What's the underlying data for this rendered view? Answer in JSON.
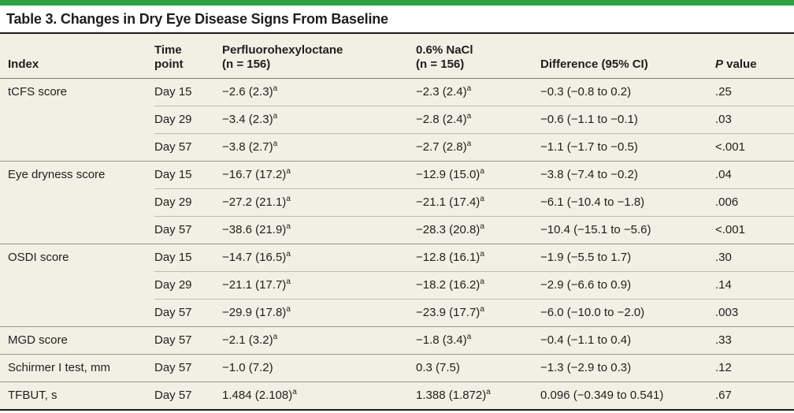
{
  "colors": {
    "accent_green": "#2f9e44",
    "table_bg": "#f2f0e5",
    "border_dark": "#1b1b1b",
    "border_header": "#7f7d74",
    "border_group": "#98968c",
    "border_row": "#bdbbae",
    "text": "#1e1e1e"
  },
  "table": {
    "title": "Table 3. Changes in Dry Eye Disease Signs From Baseline",
    "columns": [
      {
        "label": "Index"
      },
      {
        "line1": "Time",
        "line2": "point"
      },
      {
        "line1": "Perfluorohexyloctane",
        "line2": "(n = 156)"
      },
      {
        "line1": "0.6% NaCl",
        "line2": "(n = 156)"
      },
      {
        "label": "Difference (95% CI)"
      },
      {
        "p_italic": "P",
        "p_rest": " value"
      }
    ],
    "footnote_marker": "a",
    "groups": [
      {
        "index": "tCFS score",
        "rows": [
          {
            "time": "Day 15",
            "pfho": {
              "t": "−2.6 (2.3)",
              "sup": "a"
            },
            "nacl": {
              "t": "−2.3 (2.4)",
              "sup": "a"
            },
            "diff": "−0.3 (−0.8 to 0.2)",
            "p": ".25"
          },
          {
            "time": "Day 29",
            "pfho": {
              "t": "−3.4 (2.3)",
              "sup": "a"
            },
            "nacl": {
              "t": "−2.8 (2.4)",
              "sup": "a"
            },
            "diff": "−0.6 (−1.1 to −0.1)",
            "p": ".03"
          },
          {
            "time": "Day 57",
            "pfho": {
              "t": "−3.8 (2.7)",
              "sup": "a"
            },
            "nacl": {
              "t": "−2.7 (2.8)",
              "sup": "a"
            },
            "diff": "−1.1 (−1.7 to −0.5)",
            "p": "<.001"
          }
        ]
      },
      {
        "index": "Eye dryness score",
        "rows": [
          {
            "time": "Day 15",
            "pfho": {
              "t": "−16.7 (17.2)",
              "sup": "a"
            },
            "nacl": {
              "t": "−12.9 (15.0)",
              "sup": "a"
            },
            "diff": "−3.8 (−7.4 to −0.2)",
            "p": ".04"
          },
          {
            "time": "Day 29",
            "pfho": {
              "t": "−27.2 (21.1)",
              "sup": "a"
            },
            "nacl": {
              "t": "−21.1 (17.4)",
              "sup": "a"
            },
            "diff": "−6.1 (−10.4 to −1.8)",
            "p": ".006"
          },
          {
            "time": "Day 57",
            "pfho": {
              "t": "−38.6 (21.9)",
              "sup": "a"
            },
            "nacl": {
              "t": "−28.3 (20.8)",
              "sup": "a"
            },
            "diff": "−10.4 (−15.1 to −5.6)",
            "p": "<.001"
          }
        ]
      },
      {
        "index": "OSDI score",
        "rows": [
          {
            "time": "Day 15",
            "pfho": {
              "t": "−14.7 (16.5)",
              "sup": "a"
            },
            "nacl": {
              "t": "−12.8 (16.1)",
              "sup": "a"
            },
            "diff": "−1.9 (−5.5 to 1.7)",
            "p": ".30"
          },
          {
            "time": "Day 29",
            "pfho": {
              "t": "−21.1 (17.7)",
              "sup": "a"
            },
            "nacl": {
              "t": "−18.2 (16.2)",
              "sup": "a"
            },
            "diff": "−2.9 (−6.6 to 0.9)",
            "p": ".14"
          },
          {
            "time": "Day 57",
            "pfho": {
              "t": "−29.9 (17.8)",
              "sup": "a"
            },
            "nacl": {
              "t": "−23.9 (17.7)",
              "sup": "a"
            },
            "diff": "−6.0 (−10.0 to −2.0)",
            "p": ".003"
          }
        ]
      },
      {
        "index": "MGD score",
        "rows": [
          {
            "time": "Day 57",
            "pfho": {
              "t": "−2.1 (3.2)",
              "sup": "a"
            },
            "nacl": {
              "t": "−1.8 (3.4)",
              "sup": "a"
            },
            "diff": "−0.4 (−1.1 to 0.4)",
            "p": ".33"
          }
        ]
      },
      {
        "index": "Schirmer I test, mm",
        "rows": [
          {
            "time": "Day 57",
            "pfho": {
              "t": "−1.0 (7.2)"
            },
            "nacl": {
              "t": "0.3 (7.5)"
            },
            "diff": "−1.3 (−2.9 to 0.3)",
            "p": ".12"
          }
        ]
      },
      {
        "index": "TFBUT, s",
        "rows": [
          {
            "time": "Day 57",
            "pfho": {
              "t": "1.484 (2.108)",
              "sup": "a"
            },
            "nacl": {
              "t": "1.388 (1.872)",
              "sup": "a"
            },
            "diff": "0.096 (−0.349 to 0.541)",
            "p": ".67"
          }
        ]
      }
    ]
  }
}
